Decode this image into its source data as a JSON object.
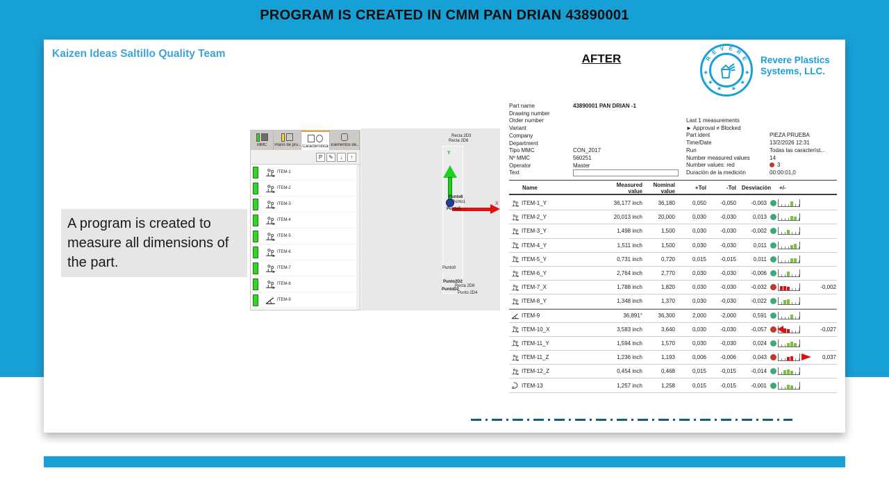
{
  "banner": {
    "title": "PROGRAM IS CREATED IN CMM PAN DRIAN 43890001"
  },
  "header": {
    "team": "Kaizen Ideas Saltillo Quality Team",
    "stage": "AFTER"
  },
  "logo": {
    "badge_word": "REVERE",
    "brand_line1": "Revere Plastics",
    "brand_line2": "Systems, LLC.",
    "color": "#1b9fd9"
  },
  "note": {
    "text": "A program is created to measure all dimensions of the part."
  },
  "colors": {
    "band_blue": "#17a0d6",
    "ok_green": "#3ea878",
    "fail_red": "#c03a2a",
    "bar_green": "#7dc242",
    "bar_red": "#dd1111"
  },
  "cmm_panel": {
    "tabs": [
      {
        "label": "MMC",
        "bar_color": "#35d42c"
      },
      {
        "label": "Plano de pru...",
        "bar_color": "#ffd92b"
      },
      {
        "label": "Características",
        "selected": true
      },
      {
        "label": "Elementos de..."
      }
    ],
    "toolbar": {
      "buttons": [
        "P",
        "✎",
        "↓",
        "↑"
      ]
    },
    "items": [
      {
        "name": "ITEM-1",
        "icon": "distance"
      },
      {
        "name": "ITEM-2",
        "icon": "distance"
      },
      {
        "name": "ITEM-3",
        "icon": "distance"
      },
      {
        "name": "ITEM-4",
        "icon": "distance"
      },
      {
        "name": "ITEM-5",
        "icon": "distance"
      },
      {
        "name": "ITEM-6",
        "icon": "distance"
      },
      {
        "name": "ITEM-7",
        "icon": "distance"
      },
      {
        "name": "ITEM-8",
        "icon": "distance"
      },
      {
        "name": "ITEM-9",
        "icon": "angle"
      }
    ]
  },
  "viewport": {
    "top_labels": [
      "Recta 2D3",
      "Recta 2D6"
    ],
    "axis_y": "Y",
    "axis_x": "X",
    "origin_labels": [
      "Punto8",
      "Punto1",
      "Punto5"
    ],
    "mid_label": "Punto9",
    "bottom_labels": [
      "Punto2D2",
      "Recta 2D8",
      "PuntoD2",
      "Punto 2D4"
    ]
  },
  "report": {
    "info_left": [
      {
        "label": "Part name",
        "value": "43890001 PAN DRIAN  -1",
        "bold": true
      },
      {
        "label": "Drawing number",
        "value": ""
      },
      {
        "label": "Order number",
        "value": ""
      },
      {
        "label": "Variant",
        "value": ""
      },
      {
        "label": "Company",
        "value": ""
      },
      {
        "label": "Department",
        "value": ""
      },
      {
        "label": "Tipo MMC",
        "value": "CON_2017"
      },
      {
        "label": "Nº MMC",
        "value": "560251"
      },
      {
        "label": "Operator",
        "value": "Master"
      },
      {
        "label": "Text",
        "value": "",
        "input": true
      }
    ],
    "info_right": [
      {
        "label": "Last 1 measurements",
        "value": ""
      },
      {
        "label": "► Approval ≠ Blocked",
        "value": ""
      },
      {
        "label": "Part ident",
        "value": "PIEZA PRUEBA"
      },
      {
        "label": "Time/Date",
        "value": "13/2/2026 12:31"
      },
      {
        "label": "Run",
        "value": "Todas las característ..."
      },
      {
        "label": "Number measured values",
        "value": "14"
      },
      {
        "label": "Number values: red",
        "value": "3",
        "dot": true
      },
      {
        "label": "Duración de la medición",
        "value": "00:00:01,0"
      }
    ],
    "table": {
      "columns": [
        "Name",
        "Measured value",
        "Nominal value",
        "+Tol",
        "-Tol",
        "Desviación",
        "+/-"
      ],
      "rows": [
        {
          "name": "ITEM-1_Y",
          "icon": "distance",
          "measured": "36,177 inch",
          "nominal": "36,180",
          "ptol": "0,050",
          "ntol": "-0,050",
          "dev": "-0,003",
          "status": "ok",
          "bars": [
            [
              3,
              7
            ]
          ],
          "extra": ""
        },
        {
          "name": "ITEM-2_Y",
          "icon": "distance",
          "measured": "20,013 inch",
          "nominal": "20,000",
          "ptol": "0,030",
          "ntol": "-0,030",
          "dev": "0,013",
          "status": "ok",
          "bars": [
            [
              3,
              6
            ],
            [
              4,
              5
            ]
          ],
          "extra": ""
        },
        {
          "name": "ITEM-3_Y",
          "icon": "distance",
          "measured": "1,498 inch",
          "nominal": "1,500",
          "ptol": "0,030",
          "ntol": "-0,030",
          "dev": "-0,002",
          "status": "ok",
          "bars": [
            [
              2,
              6
            ]
          ],
          "extra": ""
        },
        {
          "name": "ITEM-4_Y",
          "icon": "distance",
          "measured": "1,511 inch",
          "nominal": "1,500",
          "ptol": "0,030",
          "ntol": "-0,030",
          "dev": "0,011",
          "status": "ok",
          "bars": [
            [
              3,
              5
            ],
            [
              4,
              7
            ]
          ],
          "extra": ""
        },
        {
          "name": "ITEM-5_Y",
          "icon": "distance",
          "measured": "0,731 inch",
          "nominal": "0,720",
          "ptol": "0,015",
          "ntol": "-0,015",
          "dev": "0,011",
          "status": "ok",
          "bars": [
            [
              3,
              6
            ],
            [
              4,
              6
            ]
          ],
          "extra": ""
        },
        {
          "name": "ITEM-6_Y",
          "icon": "distance",
          "measured": "2,764 inch",
          "nominal": "2,770",
          "ptol": "0,030",
          "ntol": "-0,030",
          "dev": "-0,006",
          "status": "ok",
          "bars": [
            [
              2,
              7
            ]
          ],
          "extra": ""
        },
        {
          "name": "ITEM-7_X",
          "icon": "distance",
          "measured": "1,788 inch",
          "nominal": "1,820",
          "ptol": "0,030",
          "ntol": "-0,030",
          "dev": "-0,032",
          "status": "nok",
          "bars": [
            [
              0,
              6
            ],
            [
              1,
              6
            ],
            [
              2,
              5
            ]
          ],
          "extra": "-0,002"
        },
        {
          "name": "ITEM-8_Y",
          "icon": "distance",
          "measured": "1,348 inch",
          "nominal": "1,370",
          "ptol": "0,030",
          "ntol": "-0,030",
          "dev": "-0,022",
          "status": "ok",
          "bars": [
            [
              1,
              6
            ],
            [
              2,
              7
            ]
          ],
          "extra": ""
        },
        {
          "name": "ITEM-9",
          "icon": "angle",
          "measured": "36,891°",
          "nominal": "36,300",
          "ptol": "2,000",
          "ntol": "-2,000",
          "dev": "0,591",
          "status": "ok",
          "bars": [
            [
              3,
              6
            ]
          ],
          "extra": "",
          "strong_top": true
        },
        {
          "name": "ITEM-10_X",
          "icon": "distance",
          "measured": "3,583 inch",
          "nominal": "3,640",
          "ptol": "0,030",
          "ntol": "-0,030",
          "dev": "-0,057",
          "status": "nok",
          "bars": [
            [
              1,
              6
            ],
            [
              2,
              5
            ]
          ],
          "arrow": "left",
          "extra": "-0,027"
        },
        {
          "name": "ITEM-11_Y",
          "icon": "distance",
          "measured": "1,594 inch",
          "nominal": "1,570",
          "ptol": "0,030",
          "ntol": "-0,030",
          "dev": "0,024",
          "status": "ok",
          "bars": [
            [
              2,
              5
            ],
            [
              3,
              7
            ],
            [
              4,
              5
            ]
          ],
          "extra": ""
        },
        {
          "name": "ITEM-11_Z",
          "icon": "distance",
          "measured": "1,236 inch",
          "nominal": "1,193",
          "ptol": "0,006",
          "ntol": "-0,006",
          "dev": "0,043",
          "status": "nok",
          "bars": [
            [
              2,
              5
            ],
            [
              3,
              6
            ]
          ],
          "arrow": "right",
          "extra": "0,037"
        },
        {
          "name": "ITEM-12_Z",
          "icon": "distance",
          "measured": "0,454 inch",
          "nominal": "0,468",
          "ptol": "0,015",
          "ntol": "-0,015",
          "dev": "-0,014",
          "status": "ok",
          "bars": [
            [
              1,
              6
            ],
            [
              2,
              7
            ],
            [
              3,
              5
            ]
          ],
          "extra": ""
        },
        {
          "name": "ITEM-13",
          "icon": "profile",
          "measured": "1,257 inch",
          "nominal": "1,258",
          "ptol": "0,015",
          "ntol": "-0,015",
          "dev": "-0,001",
          "status": "ok",
          "bars": [
            [
              2,
              6
            ],
            [
              3,
              5
            ]
          ],
          "extra": ""
        }
      ]
    }
  }
}
